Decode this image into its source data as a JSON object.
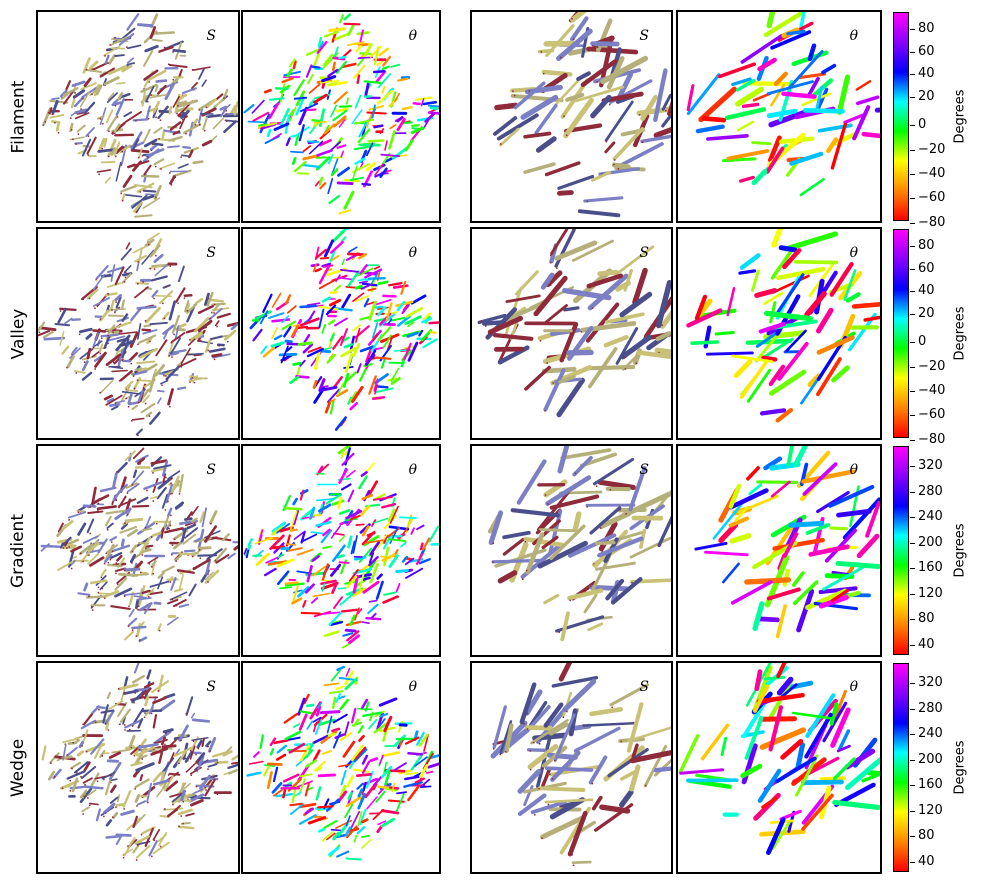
{
  "rows": [
    {
      "label": "Filament",
      "scale": "angle"
    },
    {
      "label": "Valley",
      "scale": "angle"
    },
    {
      "label": "Gradient",
      "scale": "full"
    },
    {
      "label": "Wedge",
      "scale": "full"
    }
  ],
  "panel_tags": [
    "S",
    "θ",
    "S",
    "θ"
  ],
  "colorbars": [
    {
      "ticks": [
        "80",
        "60",
        "40",
        "20",
        "0",
        "−20",
        "−40",
        "−60",
        "−80"
      ],
      "title": "Degrees"
    },
    {
      "ticks": [
        "80",
        "60",
        "40",
        "20",
        "0",
        "−20",
        "−40",
        "−60",
        "−80"
      ],
      "title": "Degrees"
    },
    {
      "ticks": [
        "320",
        "280",
        "240",
        "200",
        "160",
        "120",
        "80",
        "40"
      ],
      "title": "Degrees"
    },
    {
      "ticks": [
        "320",
        "280",
        "240",
        "200",
        "160",
        "120",
        "80",
        "40"
      ],
      "title": "Degrees"
    }
  ],
  "colors": {
    "s_palette": [
      "#7b7fc4",
      "#b5b07a",
      "#8e2a3a",
      "#4a4f8c",
      "#c9c276"
    ],
    "hue_stops": [
      "#ff0000",
      "#ff8800",
      "#ffff00",
      "#00ff00",
      "#00ffff",
      "#0000ff",
      "#8800ff",
      "#ff00ff"
    ]
  }
}
